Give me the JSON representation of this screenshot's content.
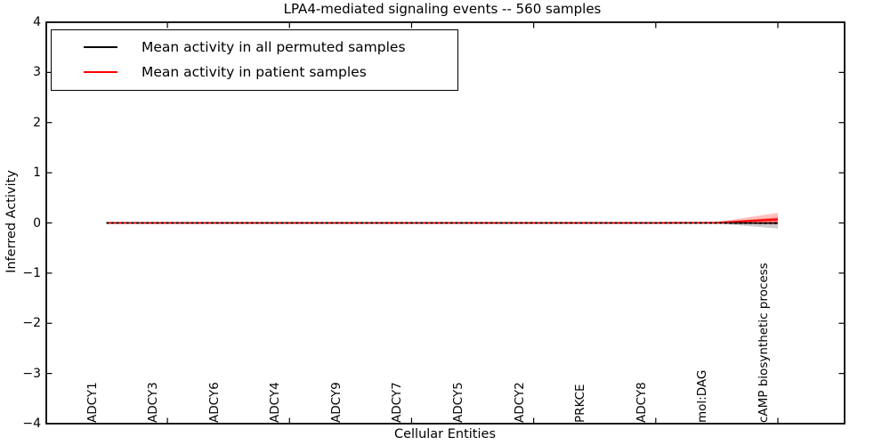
{
  "chart_data": {
    "type": "line",
    "title": "LPA4-mediated signaling events -- 560 samples",
    "xlabel": "Cellular Entities",
    "ylabel": "Inferred Activity",
    "ylim": [
      -4,
      4
    ],
    "yticks": [
      4,
      3,
      2,
      1,
      0,
      -1,
      -2,
      -3,
      -4
    ],
    "grid": false,
    "legend_position": "upper left",
    "categories": [
      "ADCY1",
      "ADCY3",
      "ADCY6",
      "ADCY4",
      "ADCY9",
      "ADCY7",
      "ADCY5",
      "ADCY2",
      "PRKCE",
      "ADCY8",
      "mol:DAG",
      "cAMP biosynthetic process"
    ],
    "series": [
      {
        "name": "Mean activity in all permuted samples",
        "color": "#000000",
        "values": [
          0,
          0,
          0,
          0,
          0,
          0,
          0,
          0,
          0,
          0,
          0,
          -0.005
        ],
        "band": {
          "upper": [
            0,
            0,
            0,
            0,
            0,
            0,
            0,
            0,
            0,
            0,
            0.005,
            0.02
          ],
          "lower": [
            0,
            0,
            0,
            0,
            0,
            0,
            0,
            0,
            0,
            0,
            -0.01,
            -0.11
          ],
          "opacity": 0.2
        }
      },
      {
        "name": "Mean activity in patient samples",
        "color": "#ff0000",
        "values": [
          0,
          0,
          0,
          0,
          0,
          0,
          0,
          0,
          0,
          0,
          0.005,
          0.07
        ],
        "band": {
          "upper": [
            0,
            0,
            0,
            0,
            0,
            0,
            0,
            0,
            0,
            0,
            0.02,
            0.2
          ],
          "lower": [
            0,
            0,
            0,
            0,
            0,
            0,
            0,
            0,
            0,
            0,
            -0.01,
            -0.03
          ],
          "opacity": 0.25
        },
        "band_inner": {
          "upper": [
            0,
            0,
            0,
            0,
            0,
            0,
            0,
            0,
            0,
            0,
            0.01,
            0.11
          ],
          "lower": [
            0,
            0,
            0,
            0,
            0,
            0,
            0,
            0,
            0,
            0,
            -0.005,
            -0.015
          ],
          "opacity": 0.4
        }
      }
    ]
  }
}
